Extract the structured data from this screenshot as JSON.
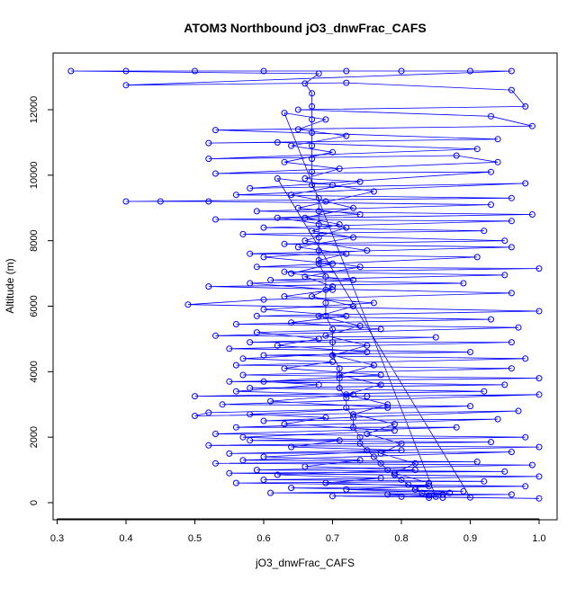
{
  "chart_data": {
    "type": "scatter",
    "title": "ATOM3 Northbound jO3_dnwFrac_CAFS",
    "xlabel": "jO3_dnwFrac_CAFS",
    "ylabel": "Altitude (m)",
    "xlim": [
      0.3,
      1.0
    ],
    "ylim": [
      0,
      13200
    ],
    "x_ticks": [
      0.3,
      0.4,
      0.5,
      0.6,
      0.7,
      0.8,
      0.9,
      1.0
    ],
    "x_tick_labels": [
      "0.3",
      "0.4",
      "0.5",
      "0.6",
      "0.7",
      "0.8",
      "0.9",
      "1.0"
    ],
    "y_ticks": [
      0,
      2000,
      4000,
      6000,
      8000,
      10000,
      12000
    ],
    "y_tick_labels": [
      "0",
      "2000",
      "4000",
      "6000",
      "8000",
      "10000",
      "12000"
    ],
    "grid": false,
    "legend": "none",
    "marker": "open-circle",
    "connect_points": true,
    "series_color": "#0000ff",
    "series": [
      {
        "points": [
          [
            0.86,
            150
          ],
          [
            0.84,
            220
          ],
          [
            0.83,
            300
          ],
          [
            0.82,
            400
          ],
          [
            0.81,
            550
          ],
          [
            0.8,
            700
          ],
          [
            0.79,
            850
          ],
          [
            0.78,
            1000
          ],
          [
            0.77,
            1200
          ],
          [
            0.76,
            1400
          ],
          [
            0.75,
            1600
          ],
          [
            0.74,
            1800
          ],
          [
            0.74,
            2000
          ],
          [
            0.73,
            2300
          ],
          [
            0.73,
            2600
          ],
          [
            0.72,
            2900
          ],
          [
            0.72,
            3200
          ],
          [
            0.71,
            3500
          ],
          [
            0.71,
            3800
          ],
          [
            0.71,
            4100
          ],
          [
            0.7,
            4500
          ],
          [
            0.7,
            4900
          ],
          [
            0.7,
            5300
          ],
          [
            0.69,
            5700
          ],
          [
            0.69,
            6100
          ],
          [
            0.69,
            6500
          ],
          [
            0.69,
            6900
          ],
          [
            0.68,
            7300
          ],
          [
            0.68,
            7700
          ],
          [
            0.68,
            8100
          ],
          [
            0.68,
            8500
          ],
          [
            0.68,
            8900
          ],
          [
            0.68,
            9300
          ],
          [
            0.67,
            9700
          ],
          [
            0.67,
            10100
          ],
          [
            0.67,
            10500
          ],
          [
            0.67,
            10900
          ],
          [
            0.67,
            11300
          ],
          [
            0.67,
            11700
          ],
          [
            0.67,
            12100
          ],
          [
            0.67,
            12500
          ],
          [
            0.66,
            12800
          ],
          [
            0.68,
            13100
          ],
          [
            0.32,
            13180
          ],
          [
            0.4,
            13180
          ],
          [
            0.5,
            13180
          ],
          [
            0.6,
            13180
          ],
          [
            0.72,
            13180
          ],
          [
            0.8,
            13180
          ],
          [
            0.9,
            13180
          ],
          [
            0.96,
            13180
          ],
          [
            0.4,
            12750
          ],
          [
            0.72,
            12820
          ],
          [
            0.96,
            12600
          ],
          [
            0.98,
            12100
          ],
          [
            0.65,
            12000
          ],
          [
            0.93,
            11800
          ],
          [
            0.99,
            11500
          ],
          [
            0.53,
            11380
          ],
          [
            0.94,
            11100
          ],
          [
            0.52,
            10980
          ],
          [
            0.62,
            11000
          ],
          [
            0.91,
            10800
          ],
          [
            0.52,
            10500
          ],
          [
            0.88,
            10600
          ],
          [
            0.94,
            10400
          ],
          [
            0.53,
            10050
          ],
          [
            0.93,
            10100
          ],
          [
            0.58,
            9600
          ],
          [
            0.98,
            9750
          ],
          [
            0.56,
            9400
          ],
          [
            0.96,
            9300
          ],
          [
            0.4,
            9200
          ],
          [
            0.45,
            9200
          ],
          [
            0.52,
            9200
          ],
          [
            0.93,
            9100
          ],
          [
            0.59,
            8900
          ],
          [
            0.99,
            8800
          ],
          [
            0.53,
            8650
          ],
          [
            0.96,
            8600
          ],
          [
            0.6,
            8400
          ],
          [
            0.92,
            8300
          ],
          [
            0.57,
            8200
          ],
          [
            0.95,
            8000
          ],
          [
            0.63,
            7900
          ],
          [
            0.96,
            7800
          ],
          [
            0.58,
            7600
          ],
          [
            0.91,
            7500
          ],
          [
            0.59,
            7200
          ],
          [
            1.0,
            7150
          ],
          [
            0.63,
            7050
          ],
          [
            0.95,
            6950
          ],
          [
            0.61,
            6800
          ],
          [
            0.89,
            6700
          ],
          [
            0.52,
            6600
          ],
          [
            0.96,
            6400
          ],
          [
            0.6,
            6200
          ],
          [
            0.49,
            6050
          ],
          [
            1.0,
            5850
          ],
          [
            0.59,
            5700
          ],
          [
            0.93,
            5600
          ],
          [
            0.56,
            5450
          ],
          [
            0.97,
            5350
          ],
          [
            0.53,
            5100
          ],
          [
            0.85,
            5050
          ],
          [
            0.58,
            4900
          ],
          [
            0.96,
            4900
          ],
          [
            0.55,
            4700
          ],
          [
            0.9,
            4600
          ],
          [
            0.6,
            4500
          ],
          [
            0.98,
            4400
          ],
          [
            0.56,
            4200
          ],
          [
            0.96,
            4100
          ],
          [
            0.57,
            3900
          ],
          [
            1.0,
            3800
          ],
          [
            0.55,
            3700
          ],
          [
            0.95,
            3600
          ],
          [
            0.58,
            3500
          ],
          [
            0.92,
            3400
          ],
          [
            0.5,
            3250
          ],
          [
            0.75,
            3250
          ],
          [
            1.0,
            3300
          ],
          [
            0.54,
            3000
          ],
          [
            0.9,
            2950
          ],
          [
            0.52,
            2750
          ],
          [
            0.5,
            2650
          ],
          [
            0.97,
            2800
          ],
          [
            0.6,
            2500
          ],
          [
            0.94,
            2550
          ],
          [
            0.56,
            2300
          ],
          [
            0.88,
            2300
          ],
          [
            0.53,
            2100
          ],
          [
            0.98,
            2000
          ],
          [
            0.58,
            1900
          ],
          [
            0.93,
            1850
          ],
          [
            0.52,
            1750
          ],
          [
            1.0,
            1700
          ],
          [
            0.55,
            1500
          ],
          [
            0.96,
            1550
          ],
          [
            0.57,
            1300
          ],
          [
            0.91,
            1250
          ],
          [
            0.53,
            1200
          ],
          [
            0.99,
            1150
          ],
          [
            0.59,
            1000
          ],
          [
            0.95,
            950
          ],
          [
            0.55,
            900
          ],
          [
            1.0,
            800
          ],
          [
            0.6,
            700
          ],
          [
            0.92,
            650
          ],
          [
            0.56,
            600
          ],
          [
            0.98,
            500
          ],
          [
            0.64,
            450
          ],
          [
            0.89,
            350
          ],
          [
            0.61,
            300
          ],
          [
            0.96,
            250
          ],
          [
            0.7,
            200
          ],
          [
            1.0,
            130
          ],
          [
            0.8,
            180
          ],
          [
            0.9,
            160
          ],
          [
            0.62,
            9900
          ],
          [
            0.7,
            9700
          ],
          [
            0.76,
            9500
          ],
          [
            0.65,
            9000
          ],
          [
            0.74,
            8800
          ],
          [
            0.62,
            8700
          ],
          [
            0.72,
            8400
          ],
          [
            0.66,
            8000
          ],
          [
            0.75,
            7700
          ],
          [
            0.6,
            7500
          ],
          [
            0.7,
            7300
          ],
          [
            0.64,
            7000
          ],
          [
            0.73,
            6800
          ],
          [
            0.58,
            6700
          ],
          [
            0.7,
            6500
          ],
          [
            0.63,
            6300
          ],
          [
            0.76,
            6100
          ],
          [
            0.6,
            5900
          ],
          [
            0.72,
            5700
          ],
          [
            0.64,
            5500
          ],
          [
            0.77,
            5300
          ],
          [
            0.59,
            5200
          ],
          [
            0.68,
            5000
          ],
          [
            0.62,
            4800
          ],
          [
            0.75,
            4600
          ],
          [
            0.57,
            4400
          ],
          [
            0.7,
            4300
          ],
          [
            0.63,
            4100
          ],
          [
            0.77,
            3900
          ],
          [
            0.6,
            3700
          ],
          [
            0.68,
            3600
          ],
          [
            0.56,
            3400
          ],
          [
            0.73,
            3300
          ],
          [
            0.61,
            3100
          ],
          [
            0.78,
            2900
          ],
          [
            0.58,
            2700
          ],
          [
            0.69,
            2600
          ],
          [
            0.63,
            2400
          ],
          [
            0.79,
            2200
          ],
          [
            0.57,
            2000
          ],
          [
            0.71,
            1900
          ],
          [
            0.64,
            1700
          ],
          [
            0.8,
            1600
          ],
          [
            0.6,
            1400
          ],
          [
            0.74,
            1300
          ],
          [
            0.66,
            1100
          ],
          [
            0.82,
            1000
          ],
          [
            0.62,
            850
          ],
          [
            0.77,
            750
          ],
          [
            0.69,
            600
          ],
          [
            0.84,
            500
          ],
          [
            0.72,
            400
          ],
          [
            0.87,
            300
          ],
          [
            0.78,
            250
          ],
          [
            0.85,
            180
          ],
          [
            0.63,
            11900
          ],
          [
            0.69,
            11700
          ],
          [
            0.65,
            11400
          ],
          [
            0.72,
            11200
          ],
          [
            0.64,
            10900
          ],
          [
            0.7,
            10700
          ],
          [
            0.63,
            10400
          ],
          [
            0.71,
            10200
          ],
          [
            0.66,
            9900
          ],
          [
            0.74,
            9800
          ],
          [
            0.64,
            9400
          ],
          [
            0.69,
            9200
          ],
          [
            0.73,
            9000
          ],
          [
            0.66,
            8700
          ],
          [
            0.71,
            8500
          ],
          [
            0.67,
            8300
          ],
          [
            0.73,
            8100
          ],
          [
            0.65,
            7800
          ],
          [
            0.72,
            7600
          ],
          [
            0.68,
            7400
          ],
          [
            0.74,
            7200
          ],
          [
            0.66,
            6900
          ],
          [
            0.7,
            6600
          ],
          [
            0.67,
            6300
          ],
          [
            0.73,
            6000
          ],
          [
            0.68,
            5700
          ],
          [
            0.74,
            5400
          ],
          [
            0.69,
            5100
          ],
          [
            0.75,
            4800
          ],
          [
            0.7,
            4500
          ],
          [
            0.76,
            4200
          ],
          [
            0.71,
            3900
          ],
          [
            0.77,
            3600
          ],
          [
            0.72,
            3300
          ],
          [
            0.78,
            3000
          ],
          [
            0.73,
            2700
          ],
          [
            0.79,
            2400
          ],
          [
            0.75,
            2100
          ],
          [
            0.8,
            1800
          ],
          [
            0.77,
            1500
          ],
          [
            0.82,
            1200
          ],
          [
            0.79,
            900
          ],
          [
            0.84,
            600
          ],
          [
            0.82,
            400
          ],
          [
            0.86,
            250
          ],
          [
            0.84,
            150
          ]
        ]
      }
    ]
  }
}
